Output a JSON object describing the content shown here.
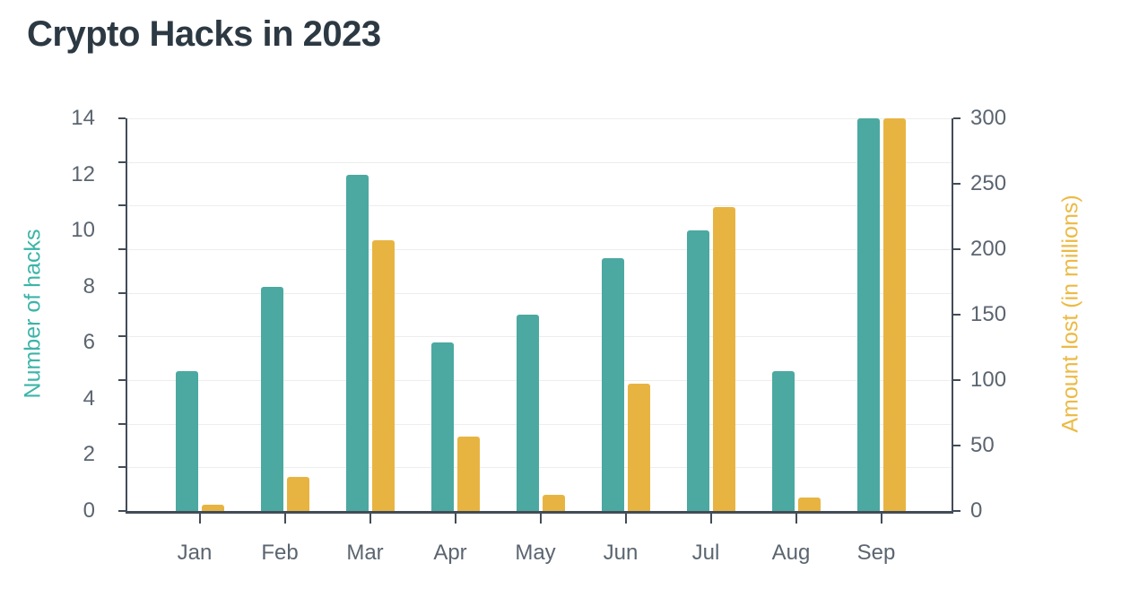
{
  "title": "Crypto Hacks in 2023",
  "colors": {
    "hacks_bar": "#4ba9a1",
    "amount_bar": "#e8b441",
    "left_axis_title": "#3cb4a8",
    "right_axis_title": "#ecba45",
    "axis_line": "#424c57",
    "tick_label": "#5b6570",
    "gridline": "#ededed",
    "title_text": "#2c3943",
    "background": "#ffffff"
  },
  "chart_data": {
    "type": "bar",
    "title": "Crypto Hacks in 2023",
    "categories": [
      "Jan",
      "Feb",
      "Mar",
      "Apr",
      "May",
      "Jun",
      "Jul",
      "Aug",
      "Sep"
    ],
    "series": [
      {
        "name": "Number of hacks",
        "axis": "left",
        "color": "#4ba9a1",
        "values": [
          5,
          8,
          12,
          6,
          7,
          9,
          10,
          5,
          14
        ]
      },
      {
        "name": "Amount lost (in millions)",
        "axis": "right",
        "color": "#e8b441",
        "values": [
          5,
          26,
          207,
          57,
          12,
          97,
          232,
          10,
          300
        ]
      }
    ],
    "left_axis": {
      "label": "Number of hacks",
      "range": [
        0,
        14
      ],
      "tick_labels": [
        0,
        2,
        4,
        6,
        8,
        10,
        12,
        14
      ]
    },
    "right_axis": {
      "label": "Amount lost (in millions)",
      "range": [
        0,
        300
      ],
      "tick_labels": [
        0,
        50,
        100,
        150,
        200,
        250,
        300
      ]
    },
    "grid": true,
    "legend": false
  }
}
